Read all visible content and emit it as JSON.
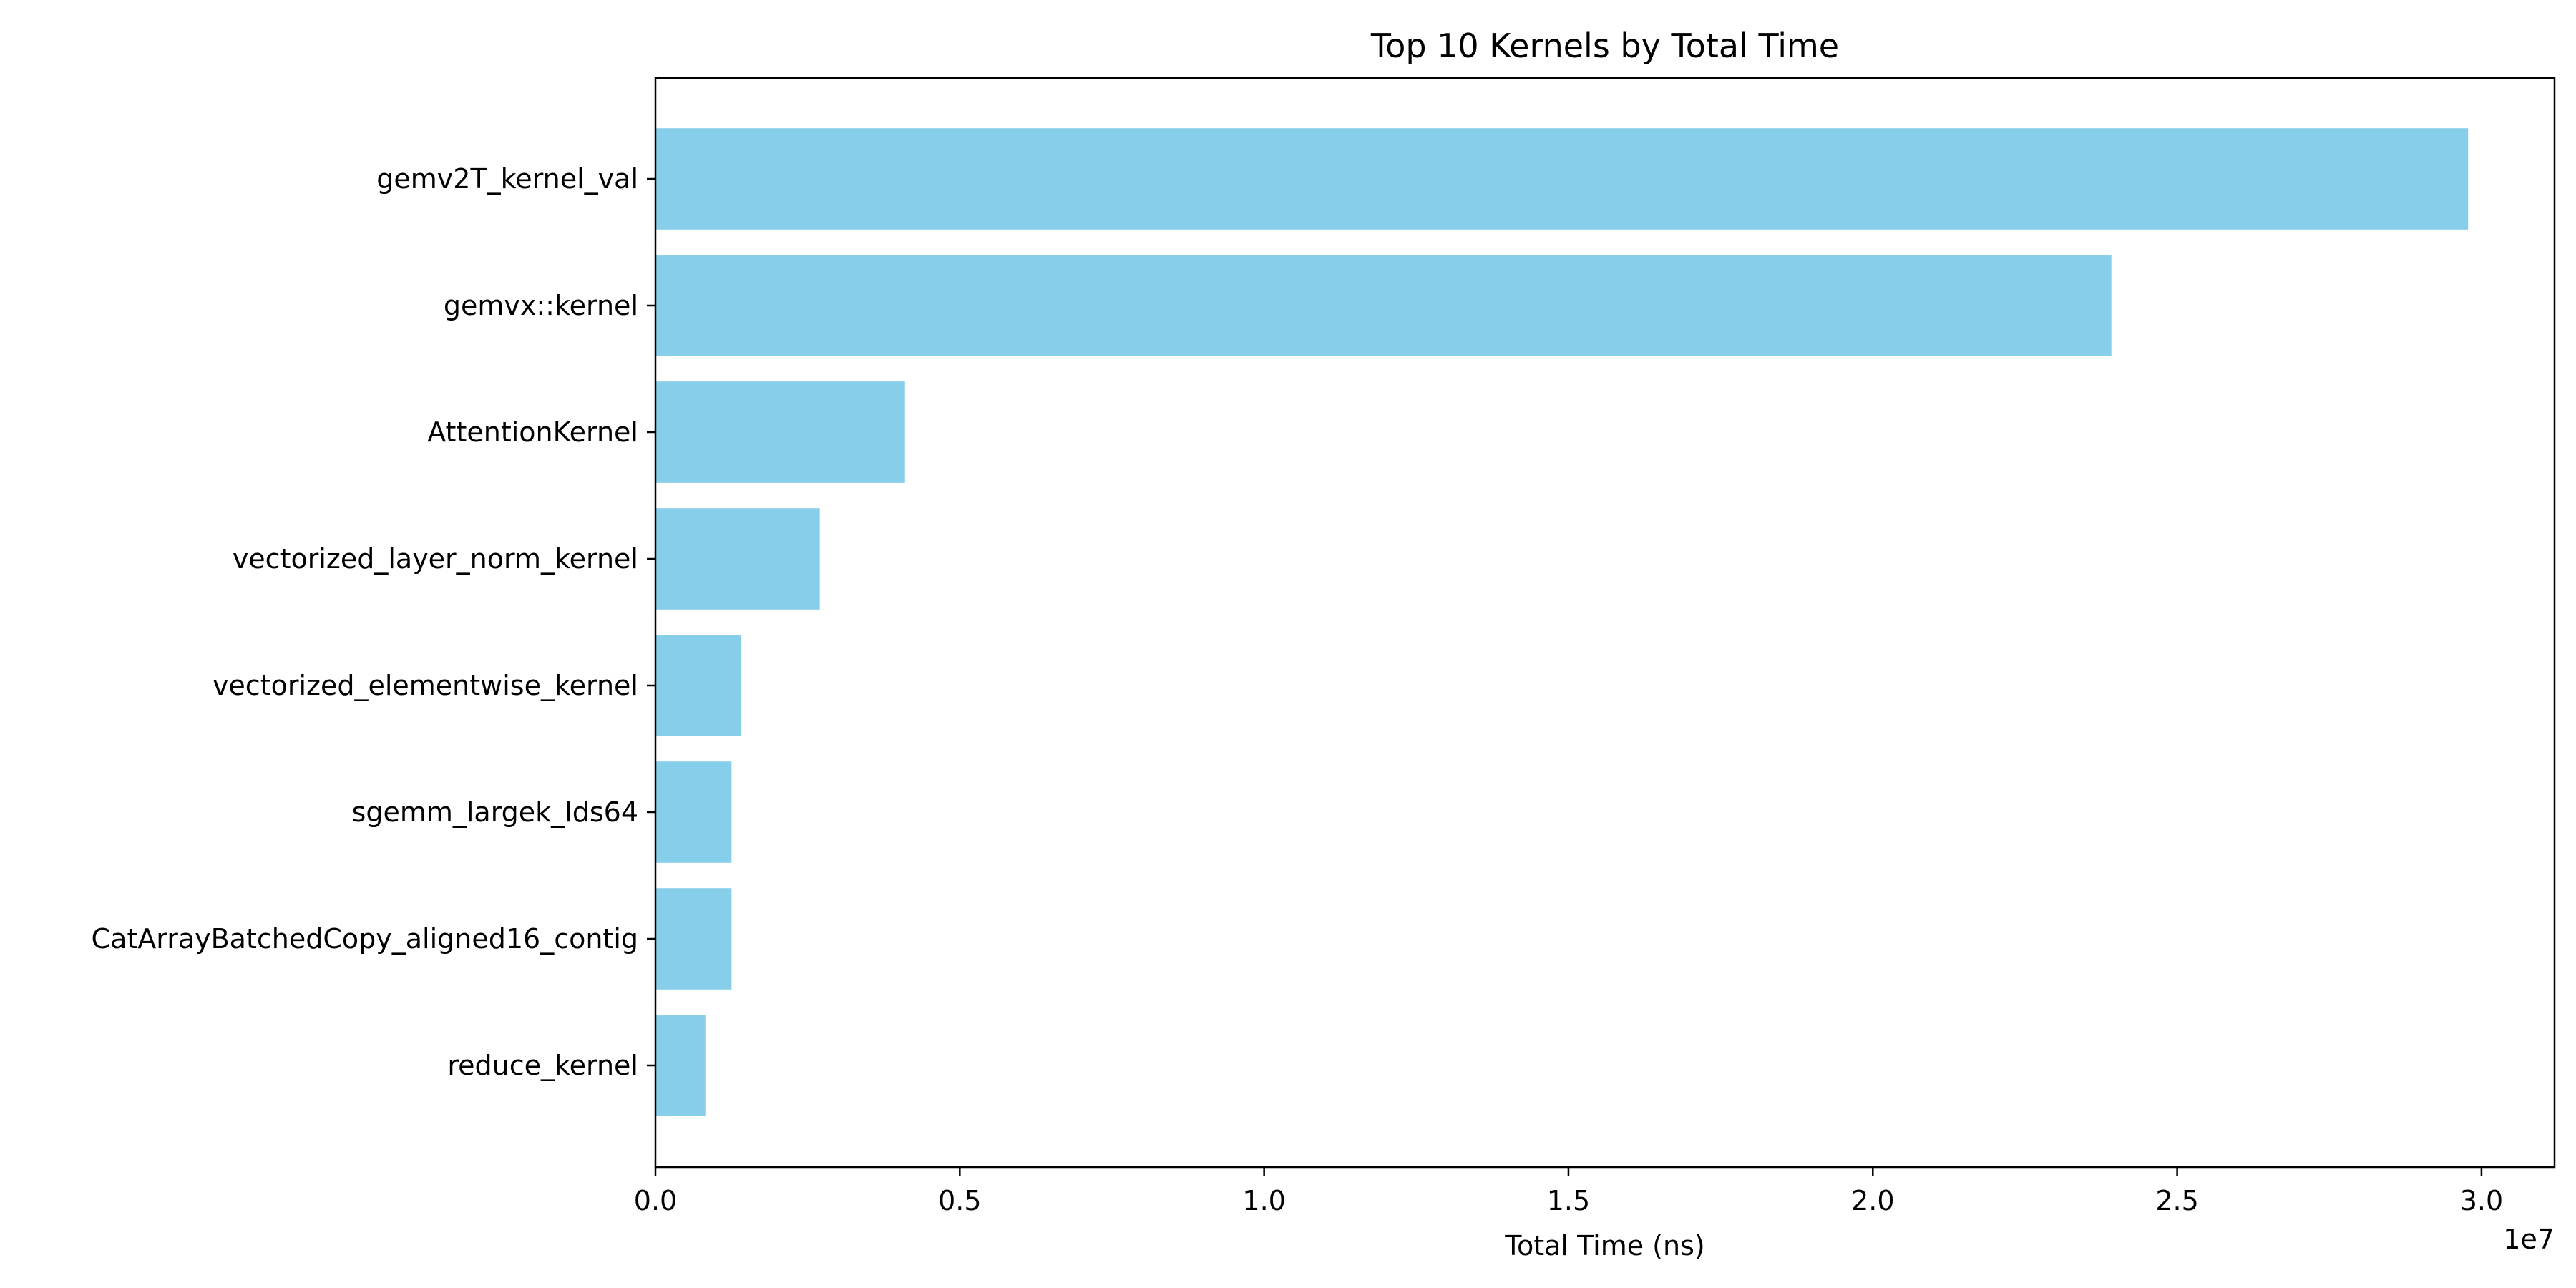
{
  "chart_data": {
    "type": "bar",
    "orientation": "horizontal",
    "title": "Top 10 Kernels by Total Time",
    "xlabel": "Total Time (ns)",
    "ylabel": "",
    "categories": [
      "gemv2T_kernel_val",
      "gemvx::kernel",
      "AttentionKernel",
      "vectorized_layer_norm_kernel",
      "vectorized_elementwise_kernel",
      "sgemm_largek_lds64",
      "CatArrayBatchedCopy_aligned16_contig",
      "reduce_kernel"
    ],
    "values": [
      29780000,
      23920000,
      4100000,
      2700000,
      1400000,
      1250000,
      1250000,
      820000
    ],
    "xlim": [
      0,
      31200000
    ],
    "xticks": [
      0,
      5000000,
      10000000,
      15000000,
      20000000,
      25000000,
      30000000
    ],
    "xtick_labels": [
      "0.0",
      "0.5",
      "1.0",
      "1.5",
      "2.0",
      "2.5",
      "3.0"
    ],
    "offset_label": "1e7",
    "bar_color": "#87ceeb",
    "grid": false,
    "legend": false
  }
}
